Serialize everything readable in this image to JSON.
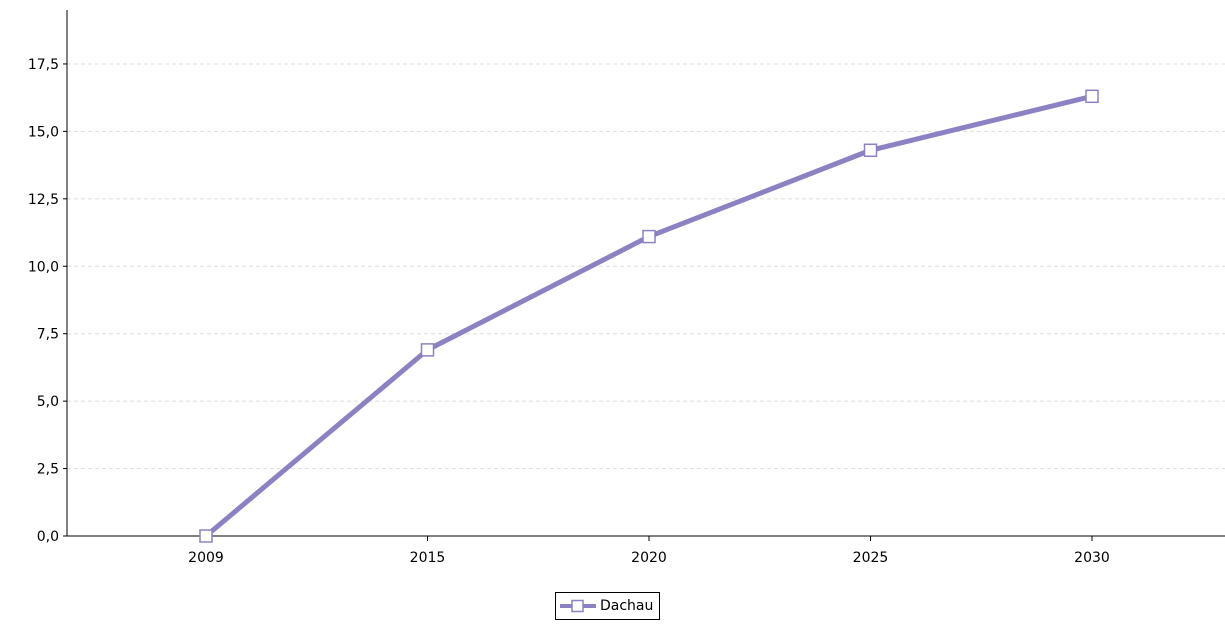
{
  "chart_data": {
    "type": "line",
    "x": [
      "2009",
      "2015",
      "2020",
      "2025",
      "2030"
    ],
    "series": [
      {
        "name": "Dachau",
        "values": [
          0.0,
          6.9,
          11.1,
          14.3,
          16.3
        ],
        "color": "#8c82c3"
      }
    ],
    "y_ticks": [
      "0,0",
      "2,5",
      "5,0",
      "7,5",
      "10,0",
      "12,5",
      "15,0",
      "17,5"
    ],
    "ylim": [
      0,
      19.5
    ],
    "grid": true,
    "legend": "bottom-center",
    "title": "",
    "xlabel": "",
    "ylabel": ""
  }
}
